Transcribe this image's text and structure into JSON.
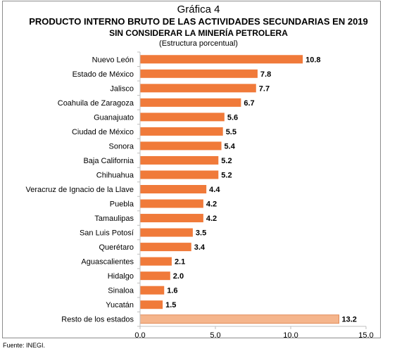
{
  "title": "Gráfica 4",
  "subtitle_line1": "PRODUCTO INTERNO BRUTO DE LAS ACTIVIDADES SECUNDARIAS EN 2019",
  "subtitle_line2": "SIN CONSIDERAR LA MINERÍA PETROLERA",
  "unit_note": "(Estructura porcentual)",
  "source": "Fuente: INEGI.",
  "colors": {
    "bar": "#f07a3a",
    "bar_highlight": "#f5b58c",
    "axis": "#bfbfbf"
  },
  "chart_data": {
    "type": "bar",
    "orientation": "horizontal",
    "title": "Gráfica 4",
    "categories": [
      "Nuevo León",
      "Estado de México",
      "Jalisco",
      "Coahuila de Zaragoza",
      "Guanajuato",
      "Ciudad de México",
      "Sonora",
      "Baja California",
      "Chihuahua",
      "Veracruz de Ignacio de la Llave",
      "Puebla",
      "Tamaulipas",
      "San Luis Potosí",
      "Querétaro",
      "Aguascalientes",
      "Hidalgo",
      "Sinaloa",
      "Yucatán",
      "Resto de los estados"
    ],
    "values": [
      10.8,
      7.8,
      7.7,
      6.7,
      5.6,
      5.5,
      5.4,
      5.2,
      5.2,
      4.4,
      4.2,
      4.2,
      3.5,
      3.4,
      2.1,
      2.0,
      1.6,
      1.5,
      13.2
    ],
    "value_labels": [
      "10.8",
      "7.8",
      "7.7",
      "6.7",
      "5.6",
      "5.5",
      "5.4",
      "5.2",
      "5.2",
      "4.4",
      "4.2",
      "4.2",
      "3.5",
      "3.4",
      "2.1",
      "2.0",
      "1.6",
      "1.5",
      "13.2"
    ],
    "highlight_category": "Resto de los estados",
    "xlim": [
      0,
      15
    ],
    "xticks": [
      0,
      5,
      10,
      15
    ],
    "xtick_labels": [
      "0.0",
      "5.0",
      "10.0",
      "15.0"
    ],
    "grid": false,
    "legend": "none"
  }
}
